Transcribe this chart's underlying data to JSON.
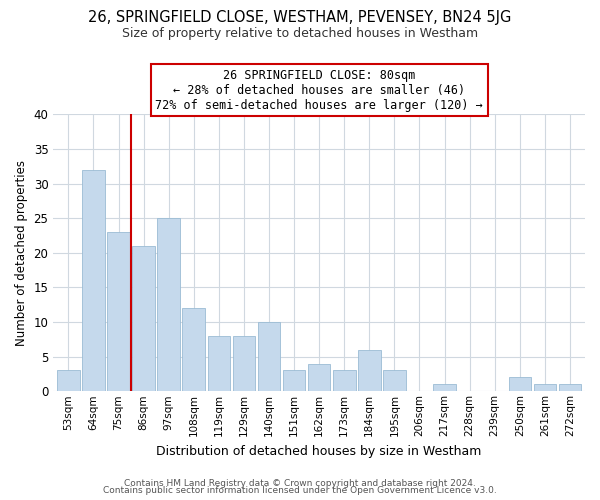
{
  "title1": "26, SPRINGFIELD CLOSE, WESTHAM, PEVENSEY, BN24 5JG",
  "title2": "Size of property relative to detached houses in Westham",
  "xlabel": "Distribution of detached houses by size in Westham",
  "ylabel": "Number of detached properties",
  "footer1": "Contains HM Land Registry data © Crown copyright and database right 2024.",
  "footer2": "Contains public sector information licensed under the Open Government Licence v3.0.",
  "bar_labels": [
    "53sqm",
    "64sqm",
    "75sqm",
    "86sqm",
    "97sqm",
    "108sqm",
    "119sqm",
    "129sqm",
    "140sqm",
    "151sqm",
    "162sqm",
    "173sqm",
    "184sqm",
    "195sqm",
    "206sqm",
    "217sqm",
    "228sqm",
    "239sqm",
    "250sqm",
    "261sqm",
    "272sqm"
  ],
  "bar_values": [
    3,
    32,
    23,
    21,
    25,
    12,
    8,
    8,
    10,
    3,
    4,
    3,
    6,
    3,
    0,
    1,
    0,
    0,
    2,
    1,
    1
  ],
  "bar_color": "#c5d9ec",
  "bar_edge_color": "#9bbcd4",
  "grid_color": "#d0d8e0",
  "vline_x": 2.5,
  "vline_color": "#cc0000",
  "annotation_line1": "26 SPRINGFIELD CLOSE: 80sqm",
  "annotation_line2": "← 28% of detached houses are smaller (46)",
  "annotation_line3": "72% of semi-detached houses are larger (120) →",
  "annotation_box_color": "#ffffff",
  "annotation_box_edgecolor": "#cc0000",
  "ylim": [
    0,
    40
  ],
  "yticks": [
    0,
    5,
    10,
    15,
    20,
    25,
    30,
    35,
    40
  ],
  "background_color": "#ffffff"
}
